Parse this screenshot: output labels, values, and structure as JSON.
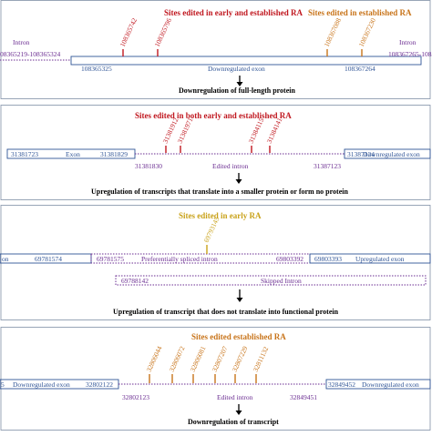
{
  "colors": {
    "panel_border": "#7f8fa6",
    "exon_blue": "#2f5496",
    "intron_purple": "#6a2c91",
    "site_red": "#c0171f",
    "site_orange": "#c8741a",
    "site_gold": "#c9a21a"
  },
  "panel1": {
    "title_left": "Sites edited in early and established RA",
    "title_right": "Sites edited in established RA",
    "intron_left_label": "Intron",
    "intron_left_coords": "08365219-108365324",
    "exon_start": "108365325",
    "exon_label": "Downregulated exon",
    "exon_end": "108367264",
    "intron_right_label": "Intron",
    "intron_right_coords": "108367265-10836",
    "sites_red": [
      "108365742",
      "108365796"
    ],
    "sites_orange": [
      "108367088",
      "108367230"
    ],
    "outcome": "Downregulation of full-length protein"
  },
  "panel2": {
    "title": "Sites edited in both early and established RA",
    "exon1_start": "31381723",
    "exon1_label": "Exon",
    "exon1_end": "31381829",
    "intron_start": "31381830",
    "intron_label": "Edited intron",
    "intron_end": "31387123",
    "exon2_start": "31387124",
    "exon2_label": "Downregulated exon",
    "sites_red": [
      "31381912",
      "31381971",
      "31384115",
      "31384141"
    ],
    "outcome": "Upregulation of transcripts that translate into a smaller protein or form no protein"
  },
  "panel3": {
    "title": "Sites edited in early RA",
    "exon1_label": "on",
    "exon1_end": "69781574",
    "intron_start": "69781575",
    "intron_label": "Preferentially spliced intron",
    "intron_end": "69803392",
    "exon2_start": "69803393",
    "exon2_label": "Upregulated exon",
    "site_gold": "69793145",
    "skipped_start": "69788142",
    "skipped_label": "Skipped Intron",
    "outcome": "Upregulation of transcript that does not translate into functional protein"
  },
  "panel4": {
    "title": "Sites edited established RA",
    "exon1_label": "5",
    "exon1_mid": "Downregulated exon",
    "exon1_end": "32802122",
    "intron_start": "32802123",
    "intron_label": "Edited intron",
    "intron_end": "32849451",
    "exon2_start": "32849452",
    "exon2_label": "Downregulated exon",
    "sites_orange": [
      "32806044",
      "32806072",
      "32806081",
      "32807207",
      "32807229",
      "32811132"
    ],
    "outcome": "Downregulation of transcript"
  }
}
